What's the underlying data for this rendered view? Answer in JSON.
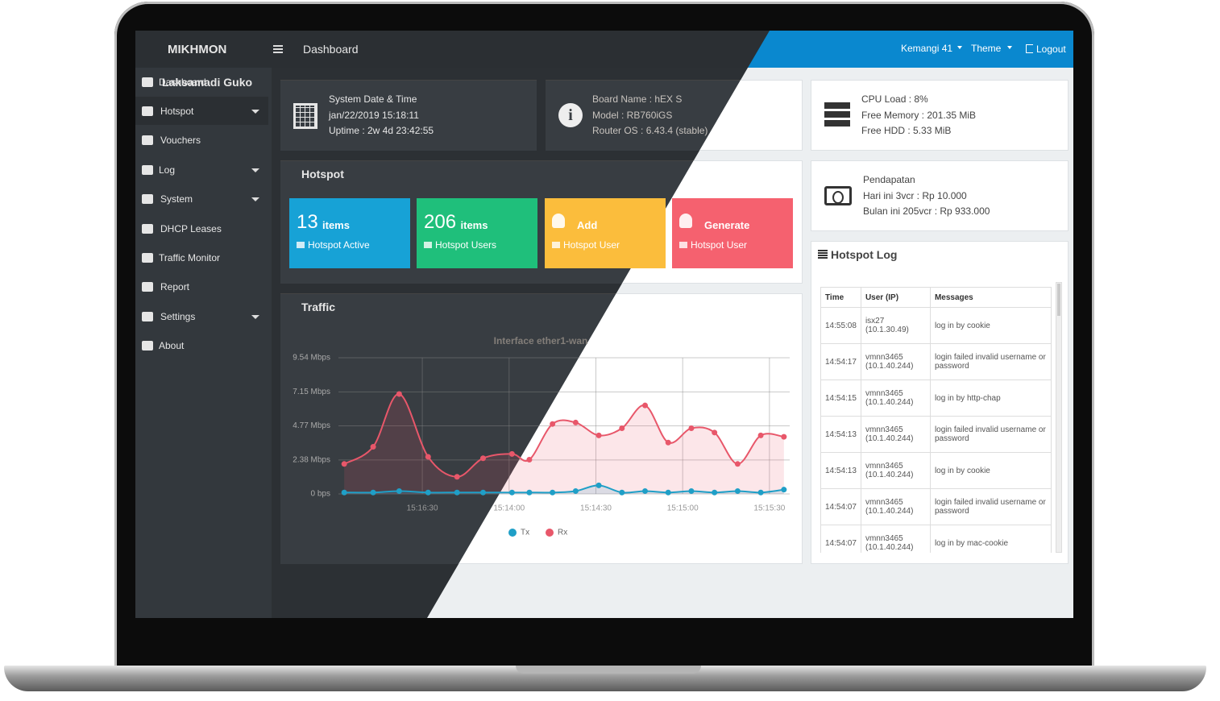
{
  "header": {
    "brand": "MIKHMON",
    "page": "Dashboard",
    "user": "Kemangi 41",
    "theme": "Theme",
    "logout": "Logout"
  },
  "sidebar": {
    "user": "Laksamadi Guko",
    "menu": [
      "Dashboard",
      "Hotspot",
      "Vouchers",
      "Log",
      "System",
      "DHCP Leases",
      "Traffic Monitor",
      "Report",
      "Settings",
      "About"
    ]
  },
  "system": {
    "title": "System Date & Time",
    "date": "jan/22/2019 15:18:11",
    "uptime": "Uptime : 2w 4d 23:42:55"
  },
  "board": {
    "name": "Board Name : hEX S",
    "model": "Model : RB760iGS",
    "os": "Router OS : 6.43.4 (stable)"
  },
  "resources": {
    "cpu": "CPU Load : 8%",
    "memory": "Free Memory : 201.35 MiB",
    "hdd": "Free HDD : 5.33 MiB"
  },
  "income": {
    "title": "Pendapatan",
    "today": "Hari ini 3vcr : Rp 10.000",
    "month": "Bulan ini 205vcr : Rp 933.000"
  },
  "hotspot": {
    "title": "Hotspot",
    "tiles": [
      {
        "value": "13",
        "unit": "items",
        "label": "Hotspot Active",
        "color": "#17a2d6"
      },
      {
        "value": "206",
        "unit": "items",
        "label": "Hotspot Users",
        "color": "#1fbf7b"
      },
      {
        "value": "Add",
        "label": "Hotspot User",
        "color": "#fbbd3c"
      },
      {
        "value": "Generate",
        "label": "Hotspot User",
        "color": "#f5616f"
      }
    ]
  },
  "traffic": {
    "title": "Traffic"
  },
  "chart_data": {
    "type": "line",
    "title": "Interface ether1-wan",
    "x": [
      54783,
      54793,
      54802,
      54812,
      54822,
      54831,
      54841,
      54847,
      54855,
      54863,
      54871,
      54879,
      54887,
      54895,
      54903,
      54911,
      54919,
      54927,
      54935
    ],
    "xlim": [
      54781,
      54937
    ],
    "xticks": [
      {
        "value": 54810,
        "label": "15:16:30"
      },
      {
        "value": 54840,
        "label": "15:14:00"
      },
      {
        "value": 54870,
        "label": "15:14:30"
      },
      {
        "value": 54900,
        "label": "15:15:00"
      },
      {
        "value": 54930,
        "label": "15:15:30"
      }
    ],
    "ylim": [
      0,
      9.54
    ],
    "yticks": [
      {
        "value": 0,
        "label": "0 bps"
      },
      {
        "value": 2.38,
        "label": "2.38 Mbps"
      },
      {
        "value": 4.77,
        "label": "4.77 Mbps"
      },
      {
        "value": 7.15,
        "label": "7.15 Mbps"
      },
      {
        "value": 9.54,
        "label": "9.54 Mbps"
      }
    ],
    "grid": true,
    "legend": "bottom",
    "series": [
      {
        "name": "Tx",
        "color": "#1f9fc7",
        "values": [
          0.1,
          0.1,
          0.2,
          0.1,
          0.1,
          0.1,
          0.1,
          0.1,
          0.1,
          0.2,
          0.6,
          0.1,
          0.2,
          0.1,
          0.2,
          0.1,
          0.2,
          0.1,
          0.3
        ]
      },
      {
        "name": "Rx",
        "color": "#e8576a",
        "values": [
          2.1,
          3.3,
          7.0,
          2.6,
          1.2,
          2.5,
          2.8,
          2.4,
          4.9,
          5.0,
          4.1,
          4.6,
          6.2,
          3.6,
          4.6,
          4.3,
          2.1,
          4.1,
          4.0
        ]
      }
    ]
  },
  "log": {
    "title": "Hotspot Log",
    "columns": [
      "Time",
      "User (IP)",
      "Messages"
    ],
    "rows": [
      [
        "14:55:08",
        "isx27 (10.1.30.49)",
        "log in by cookie"
      ],
      [
        "14:54:17",
        "vmnn3465 (10.1.40.244)",
        "login failed invalid username or password"
      ],
      [
        "14:54:15",
        "vmnn3465 (10.1.40.244)",
        "log in by http-chap"
      ],
      [
        "14:54:13",
        "vmnn3465 (10.1.40.244)",
        "login failed invalid username or password"
      ],
      [
        "14:54:13",
        "vmnn3465 (10.1.40.244)",
        "log in by cookie"
      ],
      [
        "14:54:07",
        "vmnn3465 (10.1.40.244)",
        "login failed invalid username or password"
      ],
      [
        "14:54:07",
        "vmnn3465 (10.1.40.244)",
        "log in by mac-cookie"
      ]
    ]
  }
}
